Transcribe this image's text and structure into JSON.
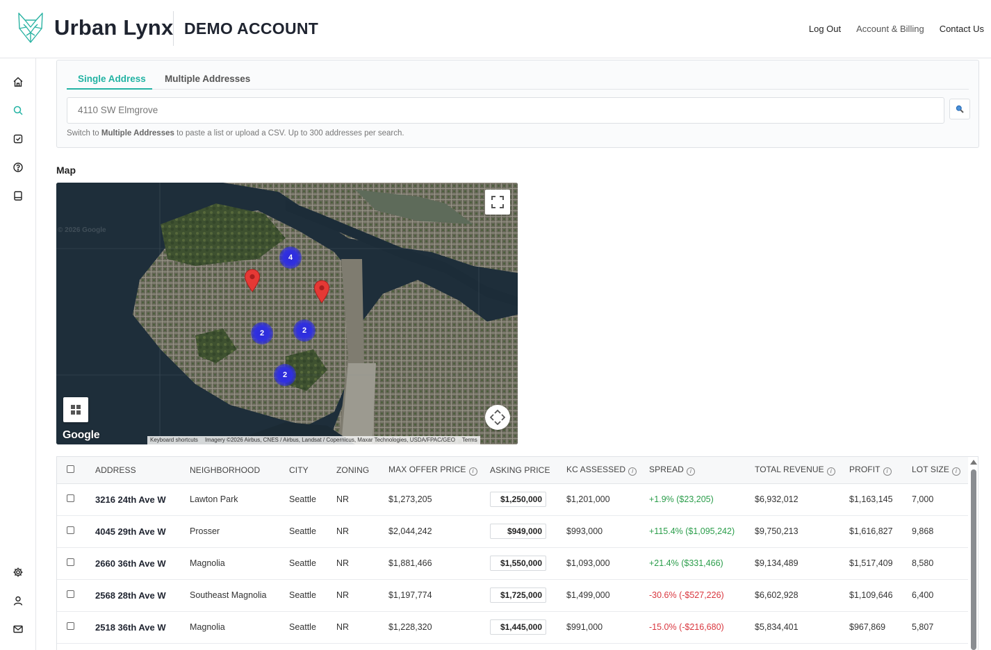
{
  "header": {
    "brand": "Urban Lynx",
    "account_label": "DEMO ACCOUNT",
    "nav": {
      "logout": "Log Out",
      "billing": "Account & Billing",
      "contact": "Contact Us"
    }
  },
  "sidebar": {
    "items": [
      {
        "icon": "home-icon"
      },
      {
        "icon": "search-icon",
        "active": true
      },
      {
        "icon": "checklist-icon"
      },
      {
        "icon": "help-icon"
      },
      {
        "icon": "book-icon"
      },
      {
        "icon": "gear-icon"
      },
      {
        "icon": "user-icon"
      },
      {
        "icon": "mail-icon"
      }
    ]
  },
  "search": {
    "tabs": [
      {
        "label": "Single Address",
        "active": true
      },
      {
        "label": "Multiple Addresses",
        "active": false
      }
    ],
    "value": "4110 SW Elmgrove",
    "hint_pre": "Switch to ",
    "hint_bold": "Multiple Addresses",
    "hint_post": " to paste a list or upload a CSV. Up to 300 addresses per search."
  },
  "map": {
    "title": "Map",
    "copyright": "© 2026 Google",
    "google_logo": "Google",
    "attribution": {
      "shortcuts": "Keyboard shortcuts",
      "imagery": "Imagery ©2026 Airbus, CNES / Airbus, Landsat / Copernicus, Maxar Technologies, USDA/FPAC/GEO",
      "terms": "Terms"
    },
    "clusters": [
      {
        "count": "4"
      },
      {
        "count": "2"
      },
      {
        "count": "2"
      },
      {
        "count": "2"
      }
    ],
    "colors": {
      "pin": "#e53935",
      "cluster": "#2f2fd9"
    }
  },
  "table": {
    "headers": {
      "address": "ADDRESS",
      "neighborhood": "NEIGHBORHOOD",
      "city": "CITY",
      "zoning": "ZONING",
      "max_offer": "MAX OFFER PRICE",
      "asking": "ASKING PRICE",
      "kc_assessed": "KC ASSESSED",
      "spread": "SPREAD",
      "revenue": "TOTAL REVENUE",
      "profit": "PROFIT",
      "lot": "LOT SIZE"
    },
    "rows": [
      {
        "address": "3216 24th Ave W",
        "neighborhood": "Lawton Park",
        "city": "Seattle",
        "zoning": "NR",
        "max_offer": "$1,273,205",
        "asking": "$1,250,000",
        "kc": "$1,201,000",
        "spread": "+1.9% ($23,205)",
        "spread_sign": "pos",
        "revenue": "$6,932,012",
        "profit": "$1,163,145",
        "lot": "7,000"
      },
      {
        "address": "4045 29th Ave W",
        "neighborhood": "Prosser",
        "city": "Seattle",
        "zoning": "NR",
        "max_offer": "$2,044,242",
        "asking": "$949,000",
        "kc": "$993,000",
        "spread": "+115.4% ($1,095,242)",
        "spread_sign": "pos",
        "revenue": "$9,750,213",
        "profit": "$1,616,827",
        "lot": "9,868"
      },
      {
        "address": "2660 36th Ave W",
        "neighborhood": "Magnolia",
        "city": "Seattle",
        "zoning": "NR",
        "max_offer": "$1,881,466",
        "asking": "$1,550,000",
        "kc": "$1,093,000",
        "spread": "+21.4% ($331,466)",
        "spread_sign": "pos",
        "revenue": "$9,134,489",
        "profit": "$1,517,409",
        "lot": "8,580"
      },
      {
        "address": "2568 28th Ave W",
        "neighborhood": "Southeast Magnolia",
        "city": "Seattle",
        "zoning": "NR",
        "max_offer": "$1,197,774",
        "asking": "$1,725,000",
        "kc": "$1,499,000",
        "spread": "-30.6% (-$527,226)",
        "spread_sign": "neg",
        "revenue": "$6,602,928",
        "profit": "$1,109,646",
        "lot": "6,400"
      },
      {
        "address": "2518 36th Ave W",
        "neighborhood": "Magnolia",
        "city": "Seattle",
        "zoning": "NR",
        "max_offer": "$1,228,320",
        "asking": "$1,445,000",
        "kc": "$991,000",
        "spread": "-15.0% (-$216,680)",
        "spread_sign": "neg",
        "revenue": "$5,834,401",
        "profit": "$967,869",
        "lot": "5,807"
      }
    ]
  }
}
